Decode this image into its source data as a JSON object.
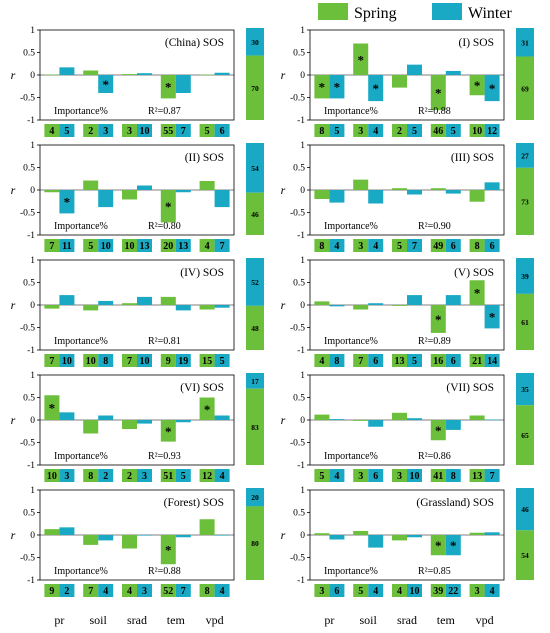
{
  "colors": {
    "spring": "#6cbf3a",
    "winter": "#19a9c4",
    "axis": "#000000"
  },
  "legend": [
    {
      "label": "Spring",
      "key": "spring"
    },
    {
      "label": "Winter",
      "key": "winter"
    }
  ],
  "x_categories": [
    "pr",
    "soil",
    "srad",
    "tem",
    "vpd"
  ],
  "y_axis_label": "r",
  "y_ticks": [
    "1",
    "0.5",
    "0",
    "-0.5",
    "-1"
  ],
  "importance_label": "Importance%",
  "chart_data": [
    {
      "type": "bar",
      "title": "(China) SOS",
      "r2": "R²=0.87",
      "categories": [
        "pr",
        "soil",
        "srad",
        "tem",
        "vpd"
      ],
      "ylim": [
        -1,
        1
      ],
      "series": [
        {
          "name": "Spring",
          "values": [
            0.01,
            0.1,
            0.02,
            -0.52,
            0.01
          ]
        },
        {
          "name": "Winter",
          "values": [
            0.17,
            -0.4,
            0.04,
            -0.4,
            0.05
          ]
        }
      ],
      "significant": {
        "spring": [
          false,
          false,
          false,
          true,
          false
        ],
        "winter": [
          false,
          true,
          false,
          false,
          false
        ]
      },
      "importance": {
        "spring": [
          "4",
          "2",
          "3",
          "55",
          "5"
        ],
        "winter": [
          "5",
          "3",
          "10",
          "7",
          "6"
        ]
      },
      "stacked_importance": {
        "winter": "30",
        "spring": "70"
      }
    },
    {
      "type": "bar",
      "title": "(I) SOS",
      "r2": "R²=0.88",
      "categories": [
        "pr",
        "soil",
        "srad",
        "tem",
        "vpd"
      ],
      "ylim": [
        -1,
        1
      ],
      "series": [
        {
          "name": "Spring",
          "values": [
            -0.52,
            0.7,
            -0.28,
            -0.78,
            -0.45
          ]
        },
        {
          "name": "Winter",
          "values": [
            -0.52,
            -0.58,
            0.23,
            0.09,
            -0.58
          ]
        }
      ],
      "significant": {
        "spring": [
          true,
          true,
          false,
          true,
          true
        ],
        "winter": [
          true,
          true,
          false,
          false,
          true
        ]
      },
      "importance": {
        "spring": [
          "8",
          "3",
          "2",
          "46",
          "10"
        ],
        "winter": [
          "5",
          "4",
          "5",
          "5",
          "12"
        ]
      },
      "stacked_importance": {
        "winter": "31",
        "spring": "69"
      }
    },
    {
      "type": "bar",
      "title": "(II) SOS",
      "r2": "R²=0.80",
      "categories": [
        "pr",
        "soil",
        "srad",
        "tem",
        "vpd"
      ],
      "ylim": [
        -1,
        1
      ],
      "series": [
        {
          "name": "Spring",
          "values": [
            -0.05,
            0.21,
            -0.21,
            -0.72,
            0.2
          ]
        },
        {
          "name": "Winter",
          "values": [
            -0.52,
            -0.38,
            0.1,
            -0.05,
            -0.38
          ]
        }
      ],
      "significant": {
        "spring": [
          false,
          false,
          false,
          true,
          false
        ],
        "winter": [
          true,
          false,
          false,
          false,
          false
        ]
      },
      "importance": {
        "spring": [
          "7",
          "5",
          "10",
          "20",
          "4"
        ],
        "winter": [
          "11",
          "10",
          "13",
          "13",
          "7"
        ]
      },
      "stacked_importance": {
        "winter": "54",
        "spring": "46"
      }
    },
    {
      "type": "bar",
      "title": "(III) SOS",
      "r2": "R²=0.90",
      "categories": [
        "pr",
        "soil",
        "srad",
        "tem",
        "vpd"
      ],
      "ylim": [
        -1,
        1
      ],
      "series": [
        {
          "name": "Spring",
          "values": [
            -0.2,
            0.23,
            0.04,
            0.04,
            -0.26
          ]
        },
        {
          "name": "Winter",
          "values": [
            -0.28,
            -0.3,
            -0.1,
            -0.08,
            0.17
          ]
        }
      ],
      "significant": {
        "spring": [
          false,
          false,
          false,
          false,
          false
        ],
        "winter": [
          false,
          false,
          false,
          false,
          false
        ]
      },
      "importance": {
        "spring": [
          "8",
          "3",
          "5",
          "49",
          "8"
        ],
        "winter": [
          "4",
          "4",
          "7",
          "6",
          "6"
        ]
      },
      "stacked_importance": {
        "winter": "27",
        "spring": "73"
      }
    },
    {
      "type": "bar",
      "title": "(IV) SOS",
      "r2": "R²=0.81",
      "categories": [
        "pr",
        "soil",
        "srad",
        "tem",
        "vpd"
      ],
      "ylim": [
        -1,
        1
      ],
      "series": [
        {
          "name": "Spring",
          "values": [
            -0.08,
            -0.12,
            0.04,
            0.18,
            -0.1
          ]
        },
        {
          "name": "Winter",
          "values": [
            0.22,
            0.09,
            0.18,
            -0.12,
            -0.06
          ]
        }
      ],
      "significant": {
        "spring": [
          false,
          false,
          false,
          false,
          false
        ],
        "winter": [
          false,
          false,
          false,
          false,
          false
        ]
      },
      "importance": {
        "spring": [
          "7",
          "10",
          "7",
          "9",
          "15"
        ],
        "winter": [
          "10",
          "8",
          "10",
          "19",
          "5"
        ]
      },
      "stacked_importance": {
        "winter": "52",
        "spring": "48"
      }
    },
    {
      "type": "bar",
      "title": "(V) SOS",
      "r2": "R²=0.89",
      "categories": [
        "pr",
        "soil",
        "srad",
        "tem",
        "vpd"
      ],
      "ylim": [
        -1,
        1
      ],
      "series": [
        {
          "name": "Spring",
          "values": [
            0.08,
            -0.1,
            -0.02,
            -0.62,
            0.55
          ]
        },
        {
          "name": "Winter",
          "values": [
            -0.03,
            0.04,
            0.22,
            0.22,
            -0.52
          ]
        }
      ],
      "significant": {
        "spring": [
          false,
          false,
          false,
          true,
          true
        ],
        "winter": [
          false,
          false,
          false,
          false,
          true
        ]
      },
      "importance": {
        "spring": [
          "4",
          "7",
          "13",
          "16",
          "21"
        ],
        "winter": [
          "8",
          "6",
          "5",
          "6",
          "14"
        ]
      },
      "stacked_importance": {
        "winter": "39",
        "spring": "61"
      }
    },
    {
      "type": "bar",
      "title": "(VI) SOS",
      "r2": "R²=0.93",
      "categories": [
        "pr",
        "soil",
        "srad",
        "tem",
        "vpd"
      ],
      "ylim": [
        -1,
        1
      ],
      "series": [
        {
          "name": "Spring",
          "values": [
            0.55,
            -0.3,
            -0.2,
            -0.48,
            0.5
          ]
        },
        {
          "name": "Winter",
          "values": [
            0.17,
            0.1,
            -0.08,
            -0.05,
            0.1
          ]
        }
      ],
      "significant": {
        "spring": [
          true,
          false,
          false,
          true,
          true
        ],
        "winter": [
          false,
          false,
          false,
          false,
          false
        ]
      },
      "importance": {
        "spring": [
          "10",
          "8",
          "2",
          "51",
          "12"
        ],
        "winter": [
          "3",
          "2",
          "3",
          "5",
          "4"
        ]
      },
      "stacked_importance": {
        "winter": "17",
        "spring": "83"
      }
    },
    {
      "type": "bar",
      "title": "(VII) SOS",
      "r2": "R²=0.86",
      "categories": [
        "pr",
        "soil",
        "srad",
        "tem",
        "vpd"
      ],
      "ylim": [
        -1,
        1
      ],
      "series": [
        {
          "name": "Spring",
          "values": [
            0.12,
            -0.02,
            0.16,
            -0.45,
            0.1
          ]
        },
        {
          "name": "Winter",
          "values": [
            0.02,
            -0.15,
            0.04,
            -0.22,
            0.01
          ]
        }
      ],
      "significant": {
        "spring": [
          false,
          false,
          false,
          true,
          false
        ],
        "winter": [
          false,
          false,
          false,
          false,
          false
        ]
      },
      "importance": {
        "spring": [
          "5",
          "3",
          "3",
          "41",
          "13"
        ],
        "winter": [
          "4",
          "6",
          "10",
          "8",
          "7"
        ]
      },
      "stacked_importance": {
        "winter": "35",
        "spring": "65"
      }
    },
    {
      "type": "bar",
      "title": "(Forest) SOS",
      "r2": "R²=0.88",
      "categories": [
        "pr",
        "soil",
        "srad",
        "tem",
        "vpd"
      ],
      "ylim": [
        -1,
        1
      ],
      "series": [
        {
          "name": "Spring",
          "values": [
            0.13,
            -0.22,
            -0.3,
            -0.65,
            0.35
          ]
        },
        {
          "name": "Winter",
          "values": [
            0.17,
            -0.12,
            0.0,
            -0.05,
            0.0
          ]
        }
      ],
      "significant": {
        "spring": [
          false,
          false,
          false,
          true,
          false
        ],
        "winter": [
          false,
          false,
          false,
          false,
          false
        ]
      },
      "importance": {
        "spring": [
          "9",
          "7",
          "4",
          "52",
          "8"
        ],
        "winter": [
          "2",
          "4",
          "3",
          "7",
          "4"
        ]
      },
      "stacked_importance": {
        "winter": "20",
        "spring": "80"
      }
    },
    {
      "type": "bar",
      "title": "(Grassland) SOS",
      "r2": "R²=0.85",
      "categories": [
        "pr",
        "soil",
        "srad",
        "tem",
        "vpd"
      ],
      "ylim": [
        -1,
        1
      ],
      "series": [
        {
          "name": "Spring",
          "values": [
            0.04,
            0.09,
            -0.12,
            -0.45,
            0.05
          ]
        },
        {
          "name": "Winter",
          "values": [
            -0.1,
            -0.28,
            -0.05,
            -0.45,
            0.06
          ]
        }
      ],
      "significant": {
        "spring": [
          false,
          false,
          false,
          true,
          false
        ],
        "winter": [
          false,
          false,
          false,
          true,
          false
        ]
      },
      "importance": {
        "spring": [
          "3",
          "5",
          "4",
          "39",
          "3"
        ],
        "winter": [
          "6",
          "4",
          "10",
          "22",
          "4"
        ]
      },
      "stacked_importance": {
        "winter": "46",
        "spring": "54"
      }
    }
  ]
}
